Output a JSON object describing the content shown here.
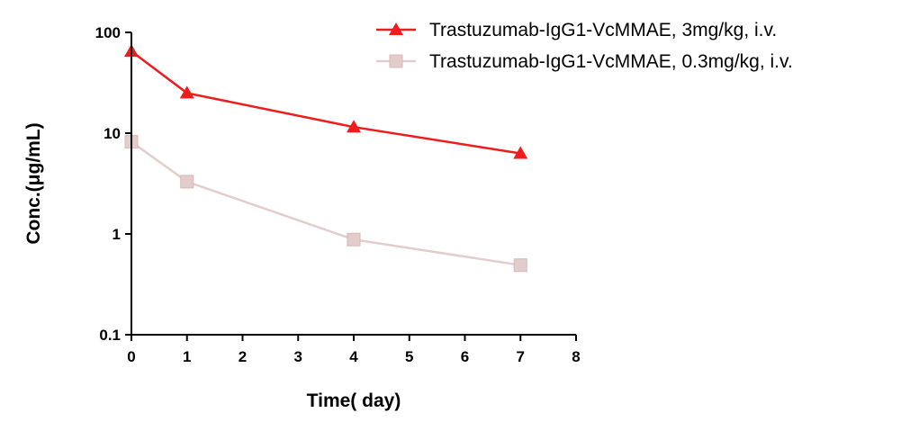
{
  "chart_data": {
    "type": "line",
    "xlabel": "Time( day)",
    "ylabel": "Conc.(μg/mL)",
    "x_scale": "linear",
    "y_scale": "log",
    "xlim": [
      0,
      8
    ],
    "ylim": [
      0.1,
      100
    ],
    "x_ticks": [
      "0",
      "1",
      "2",
      "3",
      "4",
      "5",
      "6",
      "7",
      "8"
    ],
    "y_ticks": [
      "0.1",
      "1",
      "10",
      "100"
    ],
    "grid": false,
    "legend_position": "top-right",
    "series": [
      {
        "name": "Trastuzumab-IgG1-VcMMAE, 3mg/kg, i.v.",
        "marker": "triangle",
        "color": "#ee1c1c",
        "x": [
          0,
          1,
          4,
          7
        ],
        "y": [
          65,
          25,
          11.5,
          6.3
        ]
      },
      {
        "name": "Trastuzumab-IgG1-VcMMAE, 0.3mg/kg, i.v.",
        "marker": "square",
        "color": "#e3cccc",
        "x": [
          0,
          1,
          4,
          7
        ],
        "y": [
          8.2,
          3.3,
          0.88,
          0.49
        ]
      }
    ]
  }
}
